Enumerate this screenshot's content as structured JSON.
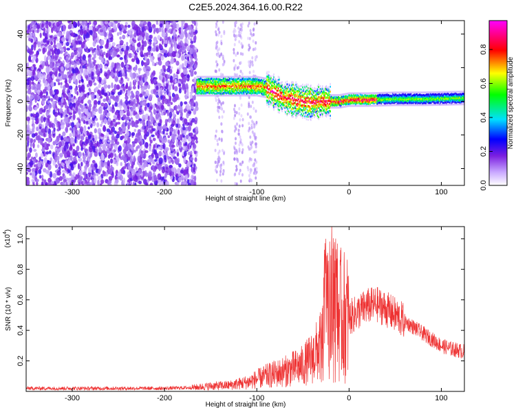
{
  "figure": {
    "title": "C2E5.2024.364.16.00.R22"
  },
  "chart_data": [
    {
      "type": "heatmap",
      "title": "C2E5.2024.364.16.00.R22",
      "xlabel": "Height of straight line (km)",
      "ylabel": "Frequency (Hz)",
      "xlim": [
        -350,
        125
      ],
      "ylim": [
        -50,
        48
      ],
      "x_ticks": [
        -300,
        -200,
        -100,
        0,
        100
      ],
      "y_ticks": [
        -40,
        -20,
        0,
        20,
        40
      ],
      "colorbar": {
        "label": "Normalized spectral amplitude",
        "range": [
          0.0,
          0.97
        ],
        "ticks": [
          0.0,
          0.2,
          0.4,
          0.6,
          0.8
        ],
        "colormap": [
          "#ffffff",
          "#7b1fe0",
          "#0000ff",
          "#00e0ff",
          "#00ff00",
          "#ffff00",
          "#ff0000",
          "#ff00ff"
        ]
      },
      "dominant_frequency_track": {
        "x": [
          -165,
          -140,
          -120,
          -100,
          -90,
          -80,
          -70,
          -60,
          -50,
          -40,
          -30,
          -20,
          -10,
          0,
          20,
          50,
          80,
          125
        ],
        "y": [
          9,
          9,
          9,
          9,
          8,
          5,
          2,
          1,
          0,
          -1,
          0,
          0,
          0,
          1,
          1,
          1.5,
          1.5,
          2
        ]
      },
      "noise_region_x": [
        -350,
        -165
      ]
    },
    {
      "type": "line",
      "xlabel": "Height of straight line (km)",
      "ylabel": "SNR (10 * v/v)",
      "y_multiplier": "(x10",
      "y_multiplier_exp": "4",
      "xlim": [
        -350,
        125
      ],
      "ylim": [
        0,
        1.08
      ],
      "x_ticks": [
        -300,
        -200,
        -100,
        0,
        100
      ],
      "y_ticks": [
        0.2,
        0.4,
        0.6,
        0.8,
        1.0
      ],
      "series": [
        {
          "color": "#ee3333",
          "x": [
            -350,
            -300,
            -250,
            -200,
            -170,
            -150,
            -130,
            -110,
            -90,
            -70,
            -50,
            -40,
            -30,
            -25,
            -20,
            -15,
            -10,
            0,
            10,
            20,
            30,
            40,
            50,
            60,
            70,
            80,
            90,
            100,
            110,
            125
          ],
          "y": [
            0.02,
            0.02,
            0.02,
            0.02,
            0.025,
            0.035,
            0.04,
            0.06,
            0.1,
            0.13,
            0.17,
            0.22,
            0.3,
            0.55,
            0.48,
            0.55,
            0.5,
            0.48,
            0.52,
            0.56,
            0.57,
            0.54,
            0.5,
            0.46,
            0.42,
            0.38,
            0.34,
            0.3,
            0.28,
            0.26
          ]
        }
      ]
    }
  ]
}
